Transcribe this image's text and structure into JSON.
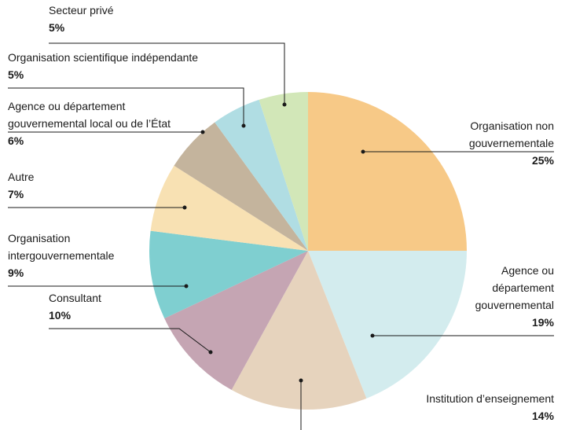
{
  "chart_data": {
    "type": "pie",
    "categories": [
      "Organisation non\ngouvernementale",
      "Agence ou\ndépartement\ngouvernemental",
      "Institution d’enseignement",
      "Consultant",
      "Organisation\nintergouvernementale",
      "Autre",
      "Agence ou département\ngouvernemental local ou de l’État",
      "Organisation scientifique indépendante",
      "Secteur privé"
    ],
    "values": [
      25,
      19,
      14,
      10,
      9,
      7,
      6,
      5,
      5
    ],
    "value_labels": [
      "25%",
      "19%",
      "14%",
      "10%",
      "9%",
      "7%",
      "6%",
      "5%",
      "5%"
    ],
    "colors": [
      "#f7c987",
      "#d3ecee",
      "#e6d3bd",
      "#c5a5b3",
      "#7fcfd0",
      "#f8e1b3",
      "#c4b49d",
      "#b0dde3",
      "#d2e7b8"
    ]
  }
}
